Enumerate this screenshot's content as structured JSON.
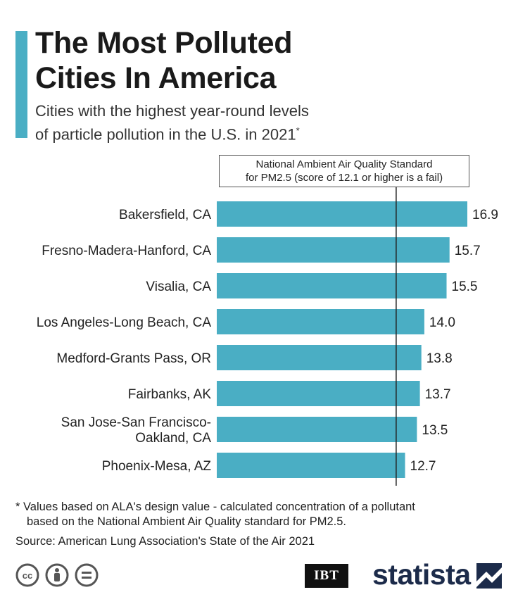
{
  "header": {
    "title_line1": "The Most Polluted",
    "title_line2": "Cities In America",
    "subtitle_line1": "Cities with the highest year-round levels",
    "subtitle_line2": "of particle pollution in the U.S. in 2021",
    "subtitle_marker": "*"
  },
  "reference": {
    "label_line1": "National Ambient Air Quality Standard",
    "label_line2": "for PM2.5 (score of 12.1 or higher is a fail)",
    "value": 12.1
  },
  "chart_data": {
    "type": "bar",
    "orientation": "horizontal",
    "title": "The Most Polluted Cities In America",
    "categories": [
      [
        "Bakersfield, CA"
      ],
      [
        "Fresno-Madera-Hanford, CA"
      ],
      [
        "Visalia, CA"
      ],
      [
        "Los Angeles-Long Beach, CA"
      ],
      [
        "Medford-Grants Pass, OR"
      ],
      [
        "Fairbanks, AK"
      ],
      [
        "San Jose-San Francisco-",
        "Oakland, CA"
      ],
      [
        "Phoenix-Mesa, AZ"
      ]
    ],
    "values": [
      16.9,
      15.7,
      15.5,
      14.0,
      13.8,
      13.7,
      13.5,
      12.7
    ],
    "value_labels": [
      "16.9",
      "15.7",
      "15.5",
      "14.0",
      "13.8",
      "13.7",
      "13.5",
      "12.7"
    ],
    "xlim": [
      0,
      16.9
    ],
    "reference_line": 12.1,
    "bar_color": "#4aaec4",
    "line_color": "#222222"
  },
  "footer": {
    "footnote_line1": "* Values based on ALA's design value - calculated concentration of a pollutant",
    "footnote_line2": "based on the National Ambient Air Quality standard for PM2.5.",
    "source": "Source: American Lung Association's State of the Air 2021",
    "ibt_logo": "IBT",
    "brand": "statista",
    "cc_icons": [
      "cc-icon",
      "by-icon",
      "nd-icon"
    ]
  }
}
